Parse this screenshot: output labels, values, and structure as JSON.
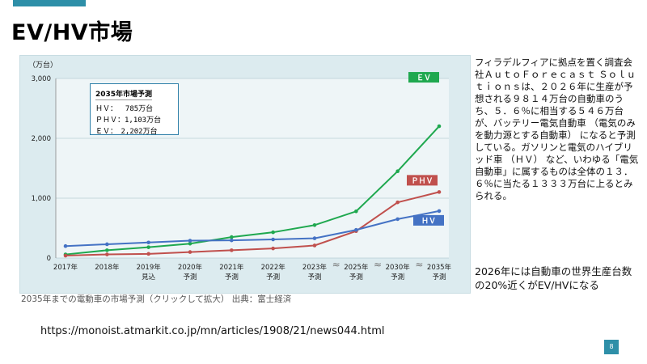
{
  "slide": {
    "title": "EV/HV市場",
    "caption": "2035年までの電動車の市場予測（クリックして拡大） 出典：富士経済",
    "url": "https://monoist.atmarkit.co.jp/mn/articles/1908/21/news044.html",
    "page_number": "8",
    "side_text": "フィラデルフィアに拠点を置く調査会社ＡｕｔｏＦｏｒｅｃａｓｔ Ｓｏｌｕｔｉｏｎｓは、２０２６年に生産が予想される９８１４万台の自動車のうち、５．６％に相当する５４６万台が、バッテリー電気自動車 （電気のみを動力源とする自動車） になると予測している。ガソリンと電気のハイブリッド車 （ＨＶ） など、いわゆる「電気自動車」に属するものは全体の１３．６％に当たる１３３３万台に上るとみられる。",
    "conclusion": "2026年には自動車の世界生産台数の20%近くがEV/HVになる",
    "accent_color": "#2e8fa8",
    "arrow_color": "#e8251f"
  },
  "legend_box": {
    "title": "2035年市場予測",
    "rows": [
      "ＨＶ：　 785万台",
      "ＰＨＶ：1,103万台",
      "ＥＶ：　2,202万台"
    ]
  },
  "chart_data": {
    "type": "line",
    "unit_label": "（万台）",
    "categories": [
      "2017年",
      "2018年",
      "2019年\n見込",
      "2020年\n予測",
      "2021年\n予測",
      "2022年\n予測",
      "2023年\n予測",
      "2025年\n予測",
      "2030年\n予測",
      "2035年\n予測"
    ],
    "yticks": [
      "0",
      "1,000",
      "2,000",
      "3,000"
    ],
    "ylim": [
      0,
      3000
    ],
    "grid": true,
    "series": [
      {
        "name": "ＥＶ",
        "color": "#1fa84f",
        "values": [
          60,
          130,
          180,
          240,
          350,
          430,
          550,
          780,
          1450,
          2202
        ]
      },
      {
        "name": "ＰＨＶ",
        "color": "#c0504d",
        "values": [
          40,
          60,
          70,
          100,
          130,
          160,
          210,
          450,
          930,
          1103
        ]
      },
      {
        "name": "ＨＶ",
        "color": "#4472c4",
        "values": [
          200,
          230,
          260,
          290,
          295,
          310,
          330,
          470,
          650,
          785
        ]
      }
    ]
  }
}
